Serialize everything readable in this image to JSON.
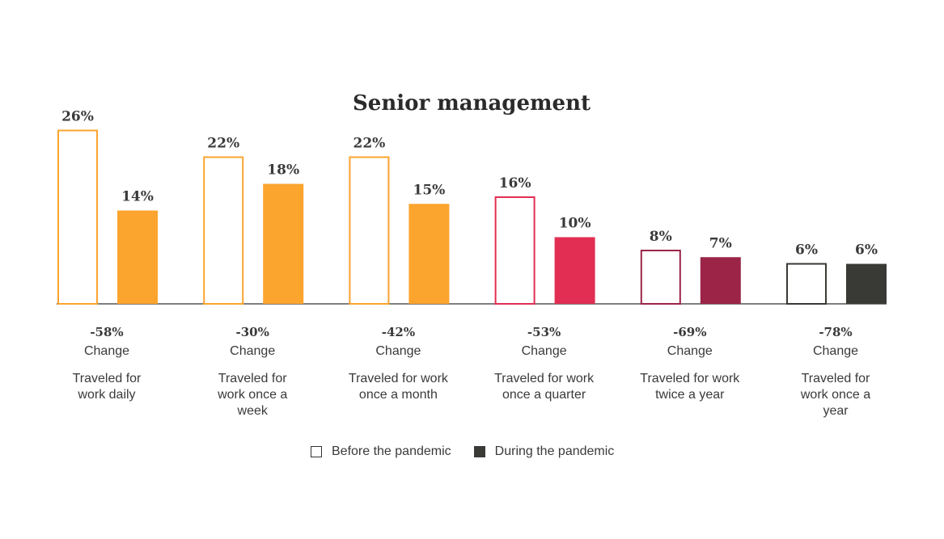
{
  "chart_data": {
    "type": "bar",
    "title": "Senior management",
    "ylim": [
      0,
      30
    ],
    "series": [
      {
        "name": "Before the pandemic",
        "values": [
          26,
          22,
          22,
          16,
          8,
          6
        ]
      },
      {
        "name": "During the pandemic",
        "values": [
          14,
          18,
          15,
          10,
          7,
          6
        ]
      }
    ],
    "value_labels": {
      "before": [
        "26%",
        "22%",
        "22%",
        "16%",
        "8%",
        "6%"
      ],
      "during": [
        "14%",
        "18%",
        "15%",
        "10%",
        "7%",
        "6%"
      ]
    },
    "changes": [
      "-58%",
      "-30%",
      "-42%",
      "-53%",
      "-69%",
      "-78%"
    ],
    "change_word": "Change",
    "categories": [
      [
        "Traveled for",
        "work daily"
      ],
      [
        "Traveled for",
        "work once a",
        "week"
      ],
      [
        "Traveled for work",
        "once a month"
      ],
      [
        "Traveled for work",
        "once a quarter"
      ],
      [
        "Traveled for work",
        "twice a year"
      ],
      [
        "Traveled for",
        "work once a",
        "year"
      ]
    ],
    "category_colors": [
      "#FBA42E",
      "#FBA42E",
      "#FBA42E",
      "#E22E53",
      "#9B2447",
      "#393935"
    ]
  },
  "legend": {
    "before_label": "Before the pandemic",
    "during_label": "During the pandemic"
  }
}
